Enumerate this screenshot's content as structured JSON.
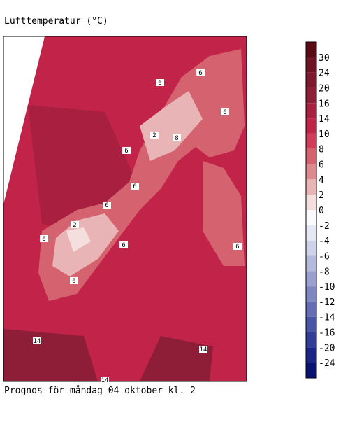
{
  "header": {
    "title": "Lufttemperatur (°C)"
  },
  "map": {
    "contour_labels": [
      6,
      6,
      6,
      2,
      8,
      6,
      6,
      6,
      2,
      6,
      6,
      6,
      6,
      14,
      14,
      14
    ]
  },
  "legend": {
    "ticks": [
      30,
      24,
      20,
      16,
      14,
      10,
      8,
      6,
      4,
      2,
      0,
      -2,
      -4,
      -6,
      -8,
      -10,
      -12,
      -14,
      -16,
      -20,
      -24
    ],
    "colors": [
      "#5a0a14",
      "#6e1424",
      "#7e1a30",
      "#8e1e38",
      "#a82040",
      "#c02548",
      "#cf3d5a",
      "#d5636f",
      "#dd8a8e",
      "#e8b4b6",
      "#f4dede",
      "#fbfbfd",
      "#e6e8f4",
      "#cfd3ea",
      "#b4bade",
      "#9aa1d1",
      "#7f87c3",
      "#656eb5",
      "#4b55a6",
      "#323d96",
      "#1a2585",
      "#0a1470"
    ]
  },
  "footer": {
    "caption": "Prognos för måndag 04 oktober kl. 2"
  }
}
